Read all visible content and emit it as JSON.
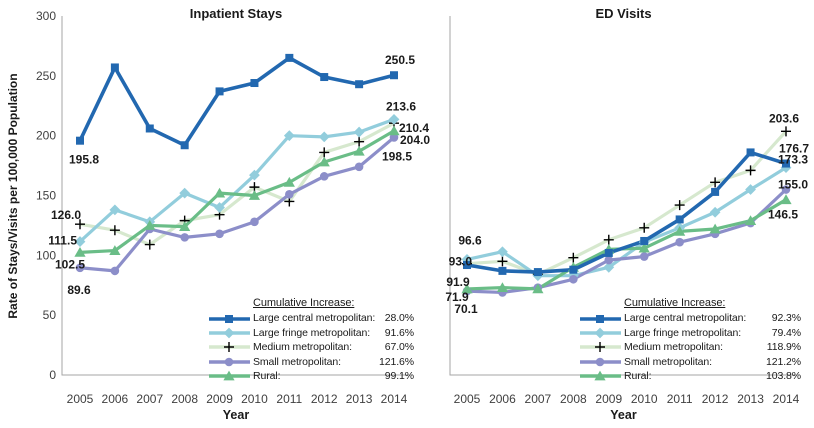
{
  "figure": {
    "y_axis_title": "Rate of Stays/Visits per 100,000 Population",
    "x_axis_title": "Year",
    "legend_title": "Cumulative Increase:"
  },
  "axis_style": {
    "axis_color": "#a6a6a6",
    "tick_text_color": "#404040",
    "label_text_color": "#1a1a1a"
  },
  "chart_data": [
    {
      "type": "line",
      "title": "Inpatient Stays",
      "xlabel": "Year",
      "ylabel": "Rate of Stays/Visits per 100,000 Population",
      "ylim": [
        0,
        300
      ],
      "yticks": [
        0,
        50,
        100,
        150,
        200,
        250,
        300
      ],
      "grid": false,
      "legend_position": "inside-bottom-right",
      "legend_title": "Cumulative Increase:",
      "x": [
        2005,
        2006,
        2007,
        2008,
        2009,
        2010,
        2011,
        2012,
        2013,
        2014
      ],
      "series": [
        {
          "name": "Large central metropolitan",
          "legend_label": "Large central metropolitan:",
          "cumulative_increase": "28.0%",
          "color": "#2268B0",
          "marker": "square",
          "values": [
            195.8,
            257,
            206,
            192,
            237,
            244,
            265,
            249,
            243,
            250.5
          ],
          "start_label": "195.8",
          "end_label": "250.5"
        },
        {
          "name": "Large fringe metropolitan",
          "legend_label": "Large fringe metropolitan:",
          "cumulative_increase": "91.6%",
          "color": "#92CDDC",
          "marker": "diamond",
          "values": [
            111.5,
            138,
            128,
            152,
            140,
            167,
            200,
            199,
            203,
            213.6
          ],
          "start_label": "111.5",
          "end_label": "213.6"
        },
        {
          "name": "Medium metropolitan",
          "legend_label": "Medium metropolitan:",
          "cumulative_increase": "67.0%",
          "color": "#D6E8CE",
          "marker": "plus",
          "values": [
            126.0,
            121,
            109,
            129,
            134,
            157,
            145,
            186,
            195,
            210.4
          ],
          "start_label": "126.0",
          "end_label": "210.4"
        },
        {
          "name": "Small metropolitan",
          "legend_label": "Small metropolitan:",
          "cumulative_increase": "121.6%",
          "color": "#8C8EC9",
          "marker": "circle",
          "values": [
            89.6,
            87,
            122,
            115,
            118,
            128,
            151,
            166,
            174,
            198.5
          ],
          "start_label": "89.6",
          "end_label": "198.5"
        },
        {
          "name": "Rural",
          "legend_label": "Rural:",
          "cumulative_increase": "99.1%",
          "color": "#6ABD87",
          "marker": "triangle",
          "values": [
            102.5,
            104,
            125,
            124,
            152,
            150,
            161,
            178,
            187,
            204.0
          ],
          "start_label": "102.5",
          "end_label": "204.0"
        }
      ]
    },
    {
      "type": "line",
      "title": "ED Visits",
      "xlabel": "Year",
      "ylabel": "Rate of Stays/Visits per 100,000 Population",
      "ylim": [
        0,
        300
      ],
      "yticks": [
        0,
        50,
        100,
        150,
        200,
        250,
        300
      ],
      "grid": false,
      "legend_position": "inside-bottom-right",
      "legend_title": "Cumulative Increase:",
      "x": [
        2005,
        2006,
        2007,
        2008,
        2009,
        2010,
        2011,
        2012,
        2013,
        2014
      ],
      "series": [
        {
          "name": "Large central metropolitan",
          "legend_label": "Large central metropolitan:",
          "cumulative_increase": "92.3%",
          "color": "#2268B0",
          "marker": "square",
          "values": [
            91.9,
            87,
            86,
            88,
            102,
            112,
            130,
            153,
            186,
            176.7
          ],
          "start_label": "91.9",
          "end_label": "176.7"
        },
        {
          "name": "Large fringe metropolitan",
          "legend_label": "Large fringe metropolitan:",
          "cumulative_increase": "79.4%",
          "color": "#92CDDC",
          "marker": "diamond",
          "values": [
            96.6,
            103,
            83,
            83,
            90,
            111,
            123,
            136,
            155,
            173.3
          ],
          "start_label": "96.6",
          "end_label": "173.3"
        },
        {
          "name": "Medium metropolitan",
          "legend_label": "Medium metropolitan:",
          "cumulative_increase": "118.9%",
          "color": "#D6E8CE",
          "marker": "plus",
          "values": [
            93.0,
            95,
            84,
            98,
            113,
            123,
            142,
            161,
            171,
            203.6
          ],
          "start_label": "93.0",
          "end_label": "203.6"
        },
        {
          "name": "Small metropolitan",
          "legend_label": "Small metropolitan:",
          "cumulative_increase": "121.2%",
          "color": "#8C8EC9",
          "marker": "circle",
          "values": [
            70.1,
            69,
            73,
            80,
            96,
            99,
            111,
            118,
            127,
            155.0
          ],
          "start_label": "70.1",
          "end_label": "155.0"
        },
        {
          "name": "Rural",
          "legend_label": "Rural:",
          "cumulative_increase": "103.8%",
          "color": "#6ABD87",
          "marker": "triangle",
          "values": [
            71.9,
            73,
            72,
            90,
            105,
            106,
            120,
            122,
            129,
            146.5
          ],
          "start_label": "71.9",
          "end_label": "146.5"
        }
      ]
    }
  ]
}
